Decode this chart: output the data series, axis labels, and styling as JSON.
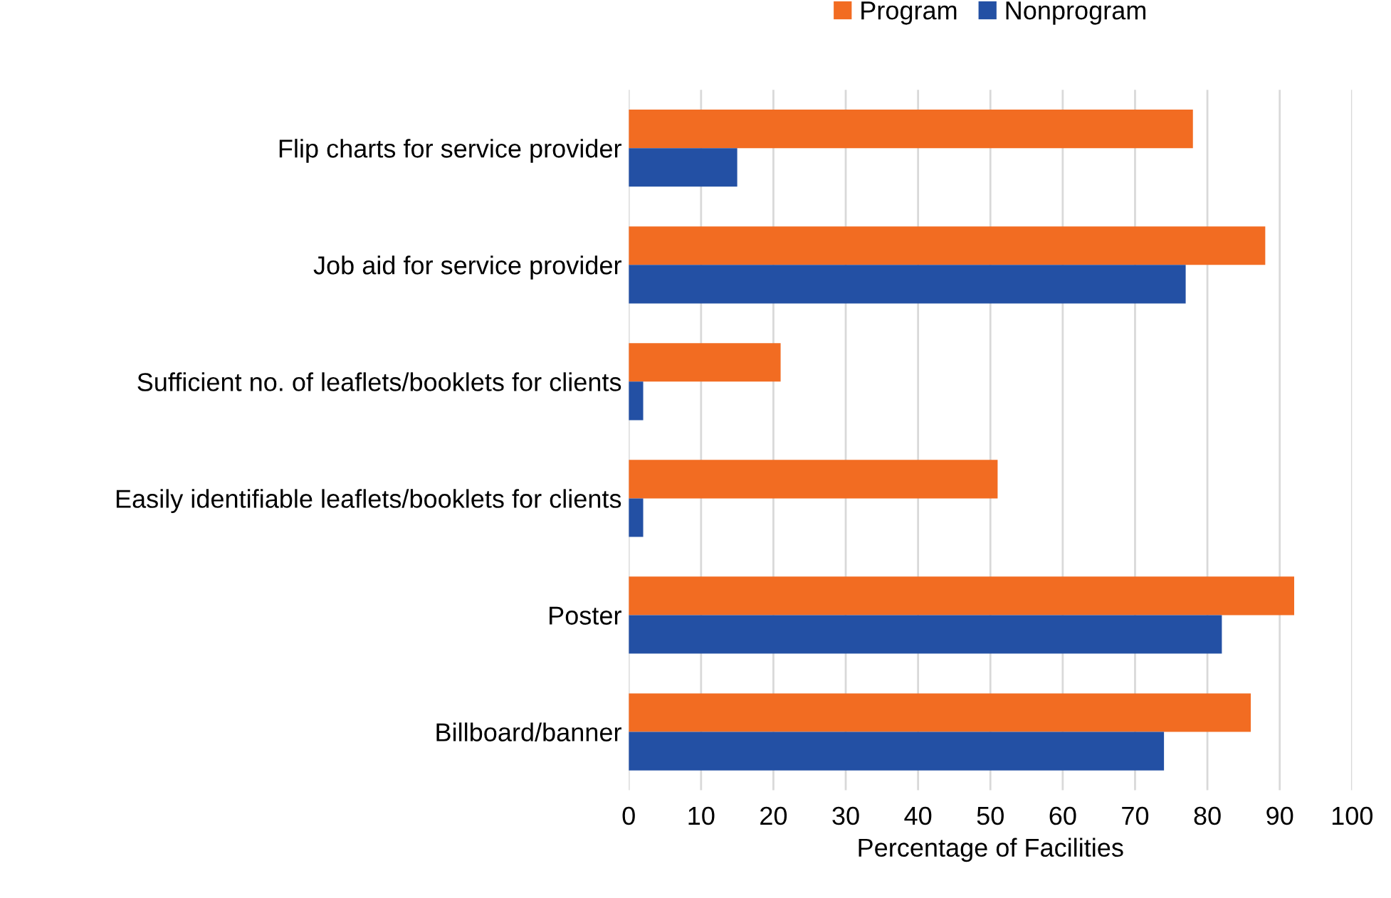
{
  "chart_data": {
    "type": "bar",
    "orientation": "horizontal",
    "xlabel": "Percentage of Facilities",
    "categories": [
      "Flip charts for service provider",
      "Job aid for service provider",
      "Sufficient no. of leaflets/booklets for clients",
      "Easily identifiable leaflets/booklets for clients",
      "Poster",
      "Billboard/banner"
    ],
    "series": [
      {
        "name": "Program",
        "color": "#f26c22",
        "values": [
          78,
          88,
          21,
          51,
          92,
          86
        ]
      },
      {
        "name": "Nonprogram",
        "color": "#2350a4",
        "values": [
          15,
          77,
          2,
          2,
          82,
          74
        ]
      }
    ],
    "xlim": [
      0,
      100
    ],
    "xticks": [
      0,
      10,
      20,
      30,
      40,
      50,
      60,
      70,
      80,
      90,
      100
    ],
    "grid": "x",
    "legend": "top"
  }
}
